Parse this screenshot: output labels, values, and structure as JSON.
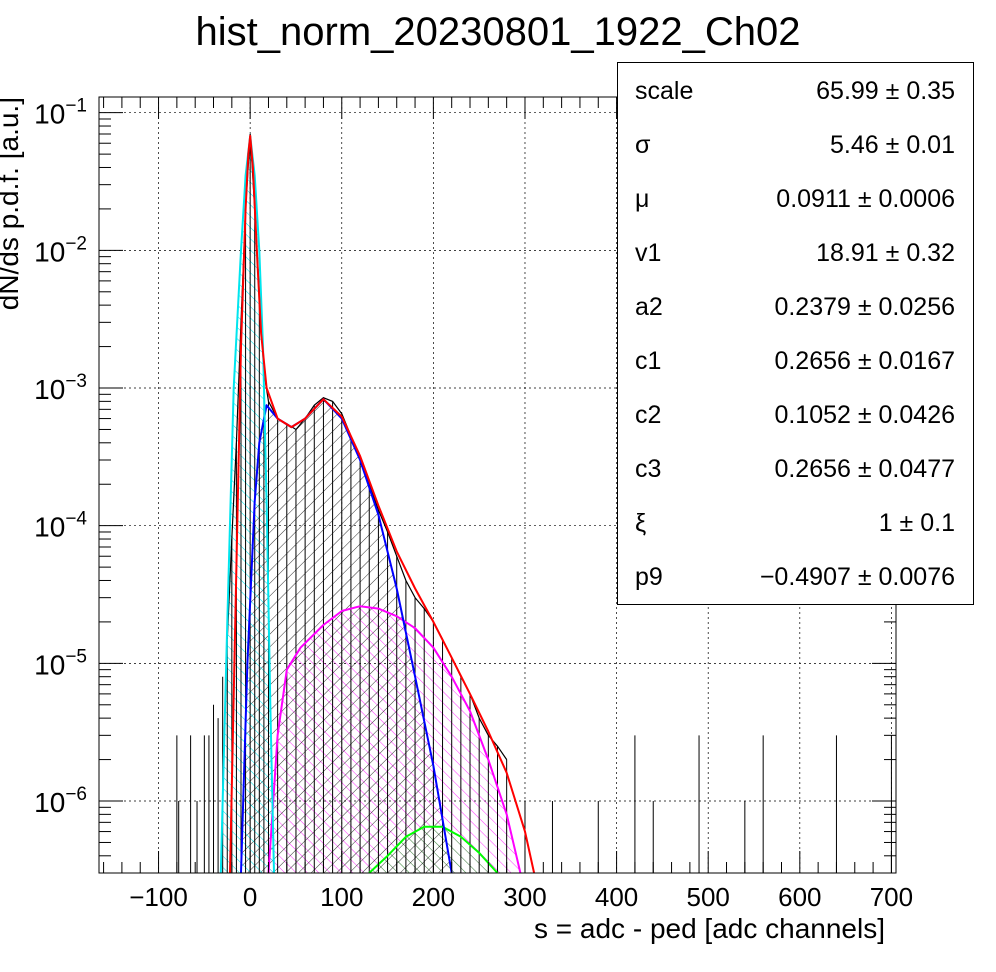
{
  "title": "hist_norm_20230801_1922_Ch02",
  "chart_data": {
    "type": "histogram",
    "title": "hist_norm_20230801_1922_Ch02",
    "xlabel": "s = adc - ped [adc channels]",
    "ylabel": "dN/ds p.d.f. [a.u.]",
    "x_range": [
      -165,
      705
    ],
    "y_range": [
      3e-07,
      0.13
    ],
    "y_scale": "log",
    "grid": true,
    "x_ticks": [
      -100,
      0,
      100,
      200,
      300,
      400,
      500,
      600,
      700
    ],
    "x_tick_labels": [
      "−100",
      "0",
      "100",
      "200",
      "300",
      "400",
      "500",
      "600",
      "700"
    ],
    "y_ticks": [
      {
        "value": 1e-06,
        "base": "10",
        "exp": "−6"
      },
      {
        "value": 1e-05,
        "base": "10",
        "exp": "−5"
      },
      {
        "value": 0.0001,
        "base": "10",
        "exp": "−4"
      },
      {
        "value": 0.001,
        "base": "10",
        "exp": "−3"
      },
      {
        "value": 0.01,
        "base": "10",
        "exp": "−2"
      },
      {
        "value": 0.1,
        "base": "10",
        "exp": "−1"
      }
    ],
    "series": [
      {
        "id": "data",
        "kind": "histogram",
        "color": "#000000",
        "points": [
          [
            -80,
            3e-06
          ],
          [
            -78,
            1e-06
          ],
          [
            -65,
            3e-06
          ],
          [
            -58,
            1e-06
          ],
          [
            -50,
            3e-06
          ],
          [
            -45,
            3e-06
          ],
          [
            -40,
            5e-06
          ],
          [
            -35,
            4e-06
          ],
          [
            -30,
            8e-06
          ],
          [
            -25,
            1.5e-05
          ],
          [
            -20,
            8e-05
          ],
          [
            -15,
            0.0004
          ],
          [
            -10,
            0.003
          ],
          [
            -5,
            0.02
          ],
          [
            0,
            0.07
          ],
          [
            5,
            0.02
          ],
          [
            10,
            0.005
          ],
          [
            15,
            0.0013
          ],
          [
            20,
            0.0008
          ],
          [
            30,
            0.0006
          ],
          [
            40,
            0.00055
          ],
          [
            50,
            0.0005
          ],
          [
            60,
            0.0006
          ],
          [
            70,
            0.00075
          ],
          [
            80,
            0.00085
          ],
          [
            90,
            0.0008
          ],
          [
            100,
            0.00065
          ],
          [
            110,
            0.00045
          ],
          [
            120,
            0.0003
          ],
          [
            130,
            0.0002
          ],
          [
            140,
            0.00013
          ],
          [
            150,
            9e-05
          ],
          [
            160,
            6e-05
          ],
          [
            170,
            4e-05
          ],
          [
            180,
            3e-05
          ],
          [
            190,
            2.5e-05
          ],
          [
            200,
            2e-05
          ],
          [
            210,
            1.5e-05
          ],
          [
            220,
            1.1e-05
          ],
          [
            230,
            8e-06
          ],
          [
            240,
            6e-06
          ],
          [
            250,
            4e-06
          ],
          [
            260,
            3e-06
          ],
          [
            270,
            2.5e-06
          ],
          [
            280,
            2e-06
          ],
          [
            300,
            1e-06
          ],
          [
            330,
            1e-06
          ],
          [
            380,
            1e-06
          ],
          [
            420,
            3e-06
          ],
          [
            440,
            1e-06
          ],
          [
            490,
            3e-06
          ],
          [
            540,
            1e-06
          ],
          [
            560,
            3e-06
          ],
          [
            640,
            3e-06
          ],
          [
            700,
            3e-06
          ]
        ]
      },
      {
        "id": "total-fit",
        "kind": "curve",
        "color": "#ff0000",
        "points": [
          [
            -22,
            3e-07
          ],
          [
            -15,
            5e-05
          ],
          [
            -10,
            0.002
          ],
          [
            -5,
            0.02
          ],
          [
            -2,
            0.05
          ],
          [
            0,
            0.068
          ],
          [
            3,
            0.04
          ],
          [
            8,
            0.008
          ],
          [
            12,
            0.0025
          ],
          [
            18,
            0.001
          ],
          [
            30,
            0.0006
          ],
          [
            45,
            0.00052
          ],
          [
            60,
            0.0006
          ],
          [
            80,
            0.00083
          ],
          [
            100,
            0.00062
          ],
          [
            120,
            0.00032
          ],
          [
            140,
            0.00014
          ],
          [
            160,
            6.5e-05
          ],
          [
            180,
            3.5e-05
          ],
          [
            200,
            2e-05
          ],
          [
            220,
            1.1e-05
          ],
          [
            240,
            6e-06
          ],
          [
            260,
            3.2e-06
          ],
          [
            280,
            1.6e-06
          ],
          [
            300,
            6e-07
          ],
          [
            310,
            3e-07
          ]
        ]
      },
      {
        "id": "pedestal-component",
        "kind": "curve",
        "color": "#00e5ee",
        "fill": "#00e5ee",
        "points": [
          [
            -32,
            3e-07
          ],
          [
            -25,
            2e-05
          ],
          [
            -18,
            0.001
          ],
          [
            -10,
            0.01
          ],
          [
            -5,
            0.035
          ],
          [
            0,
            0.068
          ],
          [
            5,
            0.035
          ],
          [
            10,
            0.01
          ],
          [
            14,
            0.002
          ],
          [
            18,
            0.00015
          ],
          [
            22,
            5e-06
          ],
          [
            26,
            3e-07
          ]
        ]
      },
      {
        "id": "single-pe-component",
        "kind": "curve",
        "color": "#0000ff",
        "fill": "#000000",
        "points": [
          [
            -10,
            3e-07
          ],
          [
            -3,
            1e-05
          ],
          [
            5,
            0.00015
          ],
          [
            10,
            0.0004
          ],
          [
            18,
            0.00075
          ],
          [
            30,
            0.0006
          ],
          [
            45,
            0.00052
          ],
          [
            60,
            0.0006
          ],
          [
            80,
            0.00083
          ],
          [
            100,
            0.0006
          ],
          [
            120,
            0.0003
          ],
          [
            140,
            0.00012
          ],
          [
            160,
            3.5e-05
          ],
          [
            180,
            8e-06
          ],
          [
            200,
            1.8e-06
          ],
          [
            220,
            3e-07
          ]
        ]
      },
      {
        "id": "double-pe-component",
        "kind": "curve",
        "color": "#ff00ff",
        "fill": "#ff00ff",
        "points": [
          [
            20,
            3e-07
          ],
          [
            30,
            3e-06
          ],
          [
            40,
            9e-06
          ],
          [
            55,
            1.3e-05
          ],
          [
            80,
            1.9e-05
          ],
          [
            100,
            2.4e-05
          ],
          [
            120,
            2.6e-05
          ],
          [
            140,
            2.5e-05
          ],
          [
            160,
            2.2e-05
          ],
          [
            180,
            1.8e-05
          ],
          [
            200,
            1.3e-05
          ],
          [
            220,
            8e-06
          ],
          [
            240,
            4.5e-06
          ],
          [
            260,
            2e-06
          ],
          [
            280,
            8e-07
          ],
          [
            295,
            3e-07
          ]
        ]
      },
      {
        "id": "triple-pe-component",
        "kind": "curve",
        "color": "#00ff00",
        "fill": "#00ff00",
        "points": [
          [
            130,
            3e-07
          ],
          [
            150,
            4e-07
          ],
          [
            170,
            5.5e-07
          ],
          [
            190,
            6.5e-07
          ],
          [
            210,
            6.5e-07
          ],
          [
            230,
            5.5e-07
          ],
          [
            250,
            4.2e-07
          ],
          [
            270,
            3e-07
          ]
        ]
      }
    ]
  },
  "stats_box": [
    {
      "name": "scale",
      "value": "65.99",
      "pm": "±",
      "error": "0.35"
    },
    {
      "name": "σ",
      "value": "5.46",
      "pm": "±",
      "error": "0.01"
    },
    {
      "name": "μ",
      "value": "0.0911",
      "pm": "±",
      "error": "0.0006"
    },
    {
      "name": "v1",
      "value": "18.91",
      "pm": "±",
      "error": "0.32"
    },
    {
      "name": "a2",
      "value": "0.2379",
      "pm": "±",
      "error": "0.0256"
    },
    {
      "name": "c1",
      "value": "0.2656",
      "pm": "±",
      "error": "0.0167"
    },
    {
      "name": "c2",
      "value": "0.1052",
      "pm": "±",
      "error": "0.0426"
    },
    {
      "name": "c3",
      "value": "0.2656",
      "pm": "±",
      "error": "0.0477"
    },
    {
      "name": "ξ",
      "value": "1",
      "pm": "±",
      "error": "0.1"
    },
    {
      "name": "p9",
      "value": "−0.4907",
      "pm": "±",
      "error": "0.0076"
    }
  ]
}
